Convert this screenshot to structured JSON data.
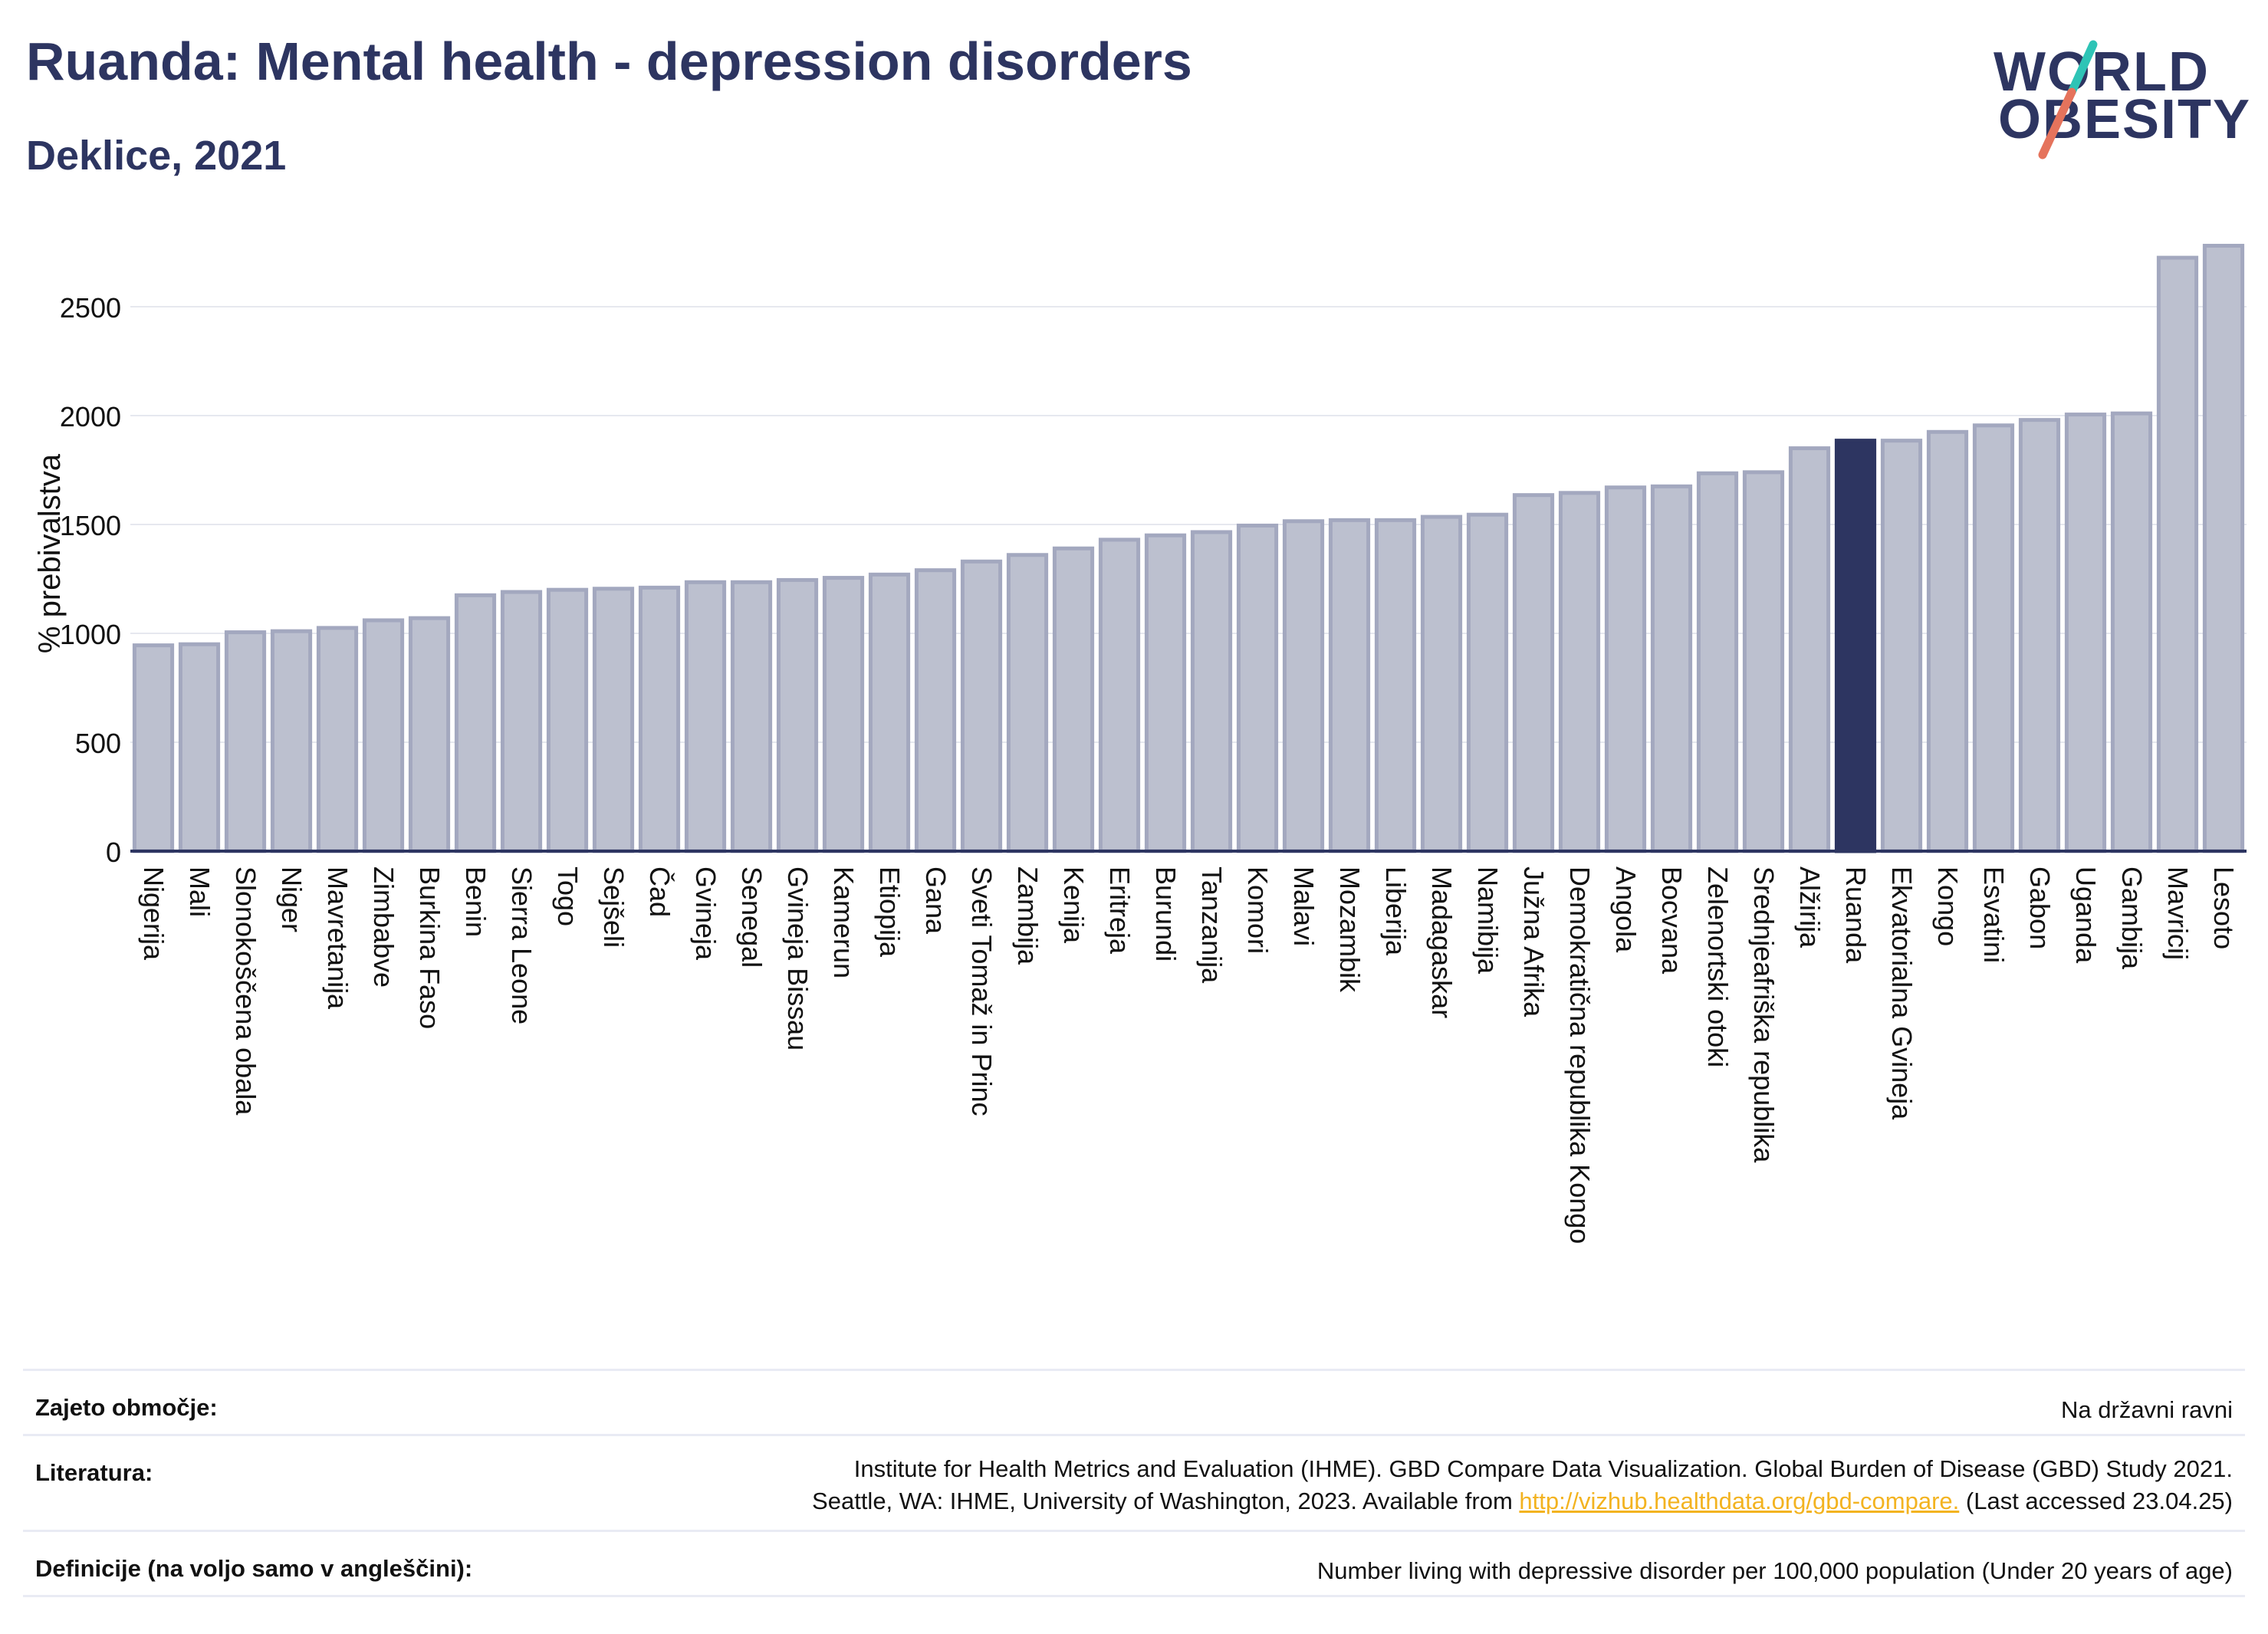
{
  "header": {
    "title": "Ruanda: Mental health - depression disorders",
    "subtitle": "Deklice, 2021"
  },
  "logo": {
    "line1": "WORLD",
    "line2": "OBESITY",
    "colors": {
      "text": "#2d3561",
      "slash_top": "#2ec4b6",
      "slash_bottom": "#e5735c"
    }
  },
  "colors": {
    "bar": "#bcc0cf",
    "bar_stroke": "#a3a8bf",
    "highlight": "#2d3561",
    "grid": "#e6e8ef",
    "axis": "#2d3561"
  },
  "chart_data": {
    "type": "bar",
    "ylabel": "% prebivalstva",
    "ylim": [
      0,
      2800
    ],
    "yticks": [
      0,
      500,
      1000,
      1500,
      2000,
      2500
    ],
    "grid": true,
    "highlight": "Ruanda",
    "categories": [
      "Nigerija",
      "Mali",
      "Slonokoščena obala",
      "Niger",
      "Mavretanija",
      "Zimbabve",
      "Burkina Faso",
      "Benin",
      "Sierra Leone",
      "Togo",
      "Sejšeli",
      "Čad",
      "Gvineja",
      "Senegal",
      "Gvineja Bissau",
      "Kamerun",
      "Etiopija",
      "Gana",
      "Sveti Tomaž in Princ",
      "Zambija",
      "Kenija",
      "Eritreja",
      "Burundi",
      "Tanzanija",
      "Komori",
      "Malavi",
      "Mozambik",
      "Liberija",
      "Madagaskar",
      "Namibija",
      "Južna Afrika",
      "Demokratična republika Kongo",
      "Angola",
      "Bocvana",
      "Zelenortski otoki",
      "Srednjeafriška republika",
      "Alžirija",
      "Ruanda",
      "Ekvatorialna Gvineja",
      "Kongo",
      "Esvatini",
      "Gabon",
      "Uganda",
      "Gambija",
      "Mavricij",
      "Lesoto"
    ],
    "values": [
      945,
      950,
      1005,
      1010,
      1025,
      1060,
      1070,
      1175,
      1190,
      1200,
      1205,
      1210,
      1235,
      1235,
      1245,
      1255,
      1270,
      1290,
      1330,
      1360,
      1390,
      1430,
      1450,
      1465,
      1495,
      1515,
      1520,
      1520,
      1535,
      1545,
      1635,
      1645,
      1670,
      1675,
      1735,
      1740,
      1850,
      1885,
      1885,
      1925,
      1955,
      1980,
      2005,
      2010,
      2725,
      2780
    ]
  },
  "footer": {
    "coverage_label": "Zajeto območje:",
    "coverage_value": "Na državni ravni",
    "literature_label": "Literatura:",
    "literature_line1": "Institute for Health Metrics and Evaluation (IHME). GBD Compare Data Visualization. Global Burden of Disease (GBD) Study 2021.",
    "literature_line2_pre": "Seattle, WA: IHME, University of Washington, 2023. Available from ",
    "literature_link": "http://vizhub.healthdata.org/gbd-compare.",
    "literature_line2_post": " (Last accessed 23.04.25)",
    "definitions_label": "Definicije (na voljo samo v angleščini):",
    "definitions_value": "Number living with depressive disorder per 100,000 population (Under 20 years of age)"
  }
}
